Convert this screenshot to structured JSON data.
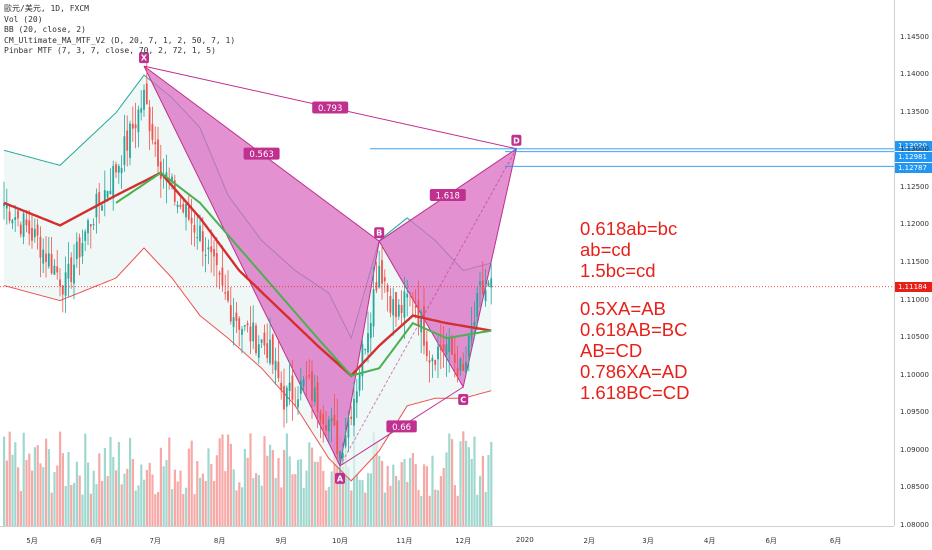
{
  "legend": [
    "歐元/美元, 1D, FXCM",
    "Vol (20)",
    "BB (20, close, 2)",
    "CM_Ultimate_MA_MTF_V2 (D, 20, 7, 1, 2, 50, 7, 1)",
    "Pinbar MTF (7, 3, 7, close, 70, 2, 72, 1, 5)"
  ],
  "annotations": {
    "block1": [
      "0.618ab=bc",
      "ab=cd",
      "1.5bc=cd"
    ],
    "block2": [
      "0.5XA=AB",
      "0.618AB=BC",
      "AB=CD",
      "0.786XA=AD",
      "1.618BC=CD"
    ]
  },
  "price_labels": [
    "1.13020",
    "1.12981",
    "1.12787",
    "1.11184"
  ],
  "colors": {
    "pattern_fill": "#d96cc2",
    "pattern_line": "#c0308f",
    "up": "#26a69a",
    "down": "#ef5350",
    "annotation": "#e8201a",
    "label_blue": "#2196f3"
  },
  "chart_data": {
    "type": "candlestick",
    "y_axis": {
      "ylim": [
        1.08,
        1.15
      ],
      "ticks": [
        "1.14500",
        "1.14000",
        "1.13500",
        "1.13000",
        "1.12500",
        "1.12000",
        "1.11500",
        "1.11000",
        "1.10500",
        "1.10000",
        "1.09500",
        "1.09000",
        "1.08500",
        "1.08000"
      ]
    },
    "x_axis": {
      "ticks": [
        {
          "label": "5月",
          "i": 10
        },
        {
          "label": "6月",
          "i": 33
        },
        {
          "label": "7月",
          "i": 54
        },
        {
          "label": "8月",
          "i": 77
        },
        {
          "label": "9月",
          "i": 99
        },
        {
          "label": "10月",
          "i": 120
        },
        {
          "label": "11月",
          "i": 143
        },
        {
          "label": "12月",
          "i": 164
        },
        {
          "label": "2020",
          "i": 186
        },
        {
          "label": "2月",
          "i": 209
        },
        {
          "label": "3月",
          "i": 230
        },
        {
          "label": "4月",
          "i": 252
        },
        {
          "label": "6月",
          "i": 274
        },
        {
          "label": "6月",
          "i": 297
        }
      ]
    },
    "points": [
      {
        "name": "X",
        "i": 50,
        "price": 1.1412
      },
      {
        "name": "A",
        "i": 120,
        "price": 1.088
      },
      {
        "name": "B",
        "i": 134,
        "price": 1.1179
      },
      {
        "name": "C",
        "i": 164,
        "price": 1.0985
      },
      {
        "name": "D",
        "i": 183,
        "price": 1.1302
      }
    ],
    "ratios": [
      {
        "label": "0.793",
        "from": "X",
        "to": "D"
      },
      {
        "label": "0.563",
        "from": "X",
        "to": "B"
      },
      {
        "label": "1.618",
        "from": "B",
        "to": "D"
      },
      {
        "label": "0.66",
        "from": "A",
        "to": "C"
      }
    ],
    "price_levels": [
      1.1302,
      1.12981,
      1.12787
    ],
    "last_price": 1.11184,
    "key_closes": [
      {
        "i": 0,
        "close": 1.123
      },
      {
        "i": 12,
        "close": 1.118
      },
      {
        "i": 22,
        "close": 1.112
      },
      {
        "i": 30,
        "close": 1.12
      },
      {
        "i": 38,
        "close": 1.126
      },
      {
        "i": 44,
        "close": 1.131
      },
      {
        "i": 50,
        "close": 1.137
      },
      {
        "i": 56,
        "close": 1.128
      },
      {
        "i": 62,
        "close": 1.123
      },
      {
        "i": 70,
        "close": 1.119
      },
      {
        "i": 78,
        "close": 1.111
      },
      {
        "i": 86,
        "close": 1.106
      },
      {
        "i": 94,
        "close": 1.104
      },
      {
        "i": 100,
        "close": 1.097
      },
      {
        "i": 108,
        "close": 1.099
      },
      {
        "i": 116,
        "close": 1.094
      },
      {
        "i": 120,
        "close": 1.09
      },
      {
        "i": 126,
        "close": 1.099
      },
      {
        "i": 134,
        "close": 1.115
      },
      {
        "i": 140,
        "close": 1.108
      },
      {
        "i": 146,
        "close": 1.111
      },
      {
        "i": 152,
        "close": 1.103
      },
      {
        "i": 158,
        "close": 1.104
      },
      {
        "i": 164,
        "close": 1.1
      },
      {
        "i": 170,
        "close": 1.111
      },
      {
        "i": 174,
        "close": 1.1118
      }
    ],
    "bb_upper": [
      {
        "i": 0,
        "v": 1.13
      },
      {
        "i": 20,
        "v": 1.128
      },
      {
        "i": 40,
        "v": 1.135
      },
      {
        "i": 50,
        "v": 1.14
      },
      {
        "i": 60,
        "v": 1.137
      },
      {
        "i": 70,
        "v": 1.133
      },
      {
        "i": 80,
        "v": 1.124
      },
      {
        "i": 92,
        "v": 1.118
      },
      {
        "i": 104,
        "v": 1.114
      },
      {
        "i": 116,
        "v": 1.111
      },
      {
        "i": 124,
        "v": 1.105
      },
      {
        "i": 134,
        "v": 1.118
      },
      {
        "i": 144,
        "v": 1.121
      },
      {
        "i": 154,
        "v": 1.118
      },
      {
        "i": 164,
        "v": 1.114
      },
      {
        "i": 174,
        "v": 1.115
      }
    ],
    "bb_lower": [
      {
        "i": 0,
        "v": 1.112
      },
      {
        "i": 20,
        "v": 1.11
      },
      {
        "i": 40,
        "v": 1.113
      },
      {
        "i": 50,
        "v": 1.117
      },
      {
        "i": 60,
        "v": 1.113
      },
      {
        "i": 70,
        "v": 1.108
      },
      {
        "i": 80,
        "v": 1.105
      },
      {
        "i": 92,
        "v": 1.101
      },
      {
        "i": 104,
        "v": 1.096
      },
      {
        "i": 116,
        "v": 1.089
      },
      {
        "i": 124,
        "v": 1.086
      },
      {
        "i": 134,
        "v": 1.09
      },
      {
        "i": 144,
        "v": 1.096
      },
      {
        "i": 154,
        "v": 1.097
      },
      {
        "i": 164,
        "v": 1.097
      },
      {
        "i": 174,
        "v": 1.098
      }
    ],
    "ma_red": [
      {
        "i": 0,
        "v": 1.123
      },
      {
        "i": 20,
        "v": 1.12
      },
      {
        "i": 40,
        "v": 1.124
      },
      {
        "i": 56,
        "v": 1.127
      },
      {
        "i": 70,
        "v": 1.121
      },
      {
        "i": 84,
        "v": 1.114
      },
      {
        "i": 98,
        "v": 1.109
      },
      {
        "i": 112,
        "v": 1.104
      },
      {
        "i": 124,
        "v": 1.1
      },
      {
        "i": 134,
        "v": 1.104
      },
      {
        "i": 146,
        "v": 1.108
      },
      {
        "i": 158,
        "v": 1.107
      },
      {
        "i": 174,
        "v": 1.106
      }
    ],
    "ma_green": [
      {
        "i": 40,
        "v": 1.123
      },
      {
        "i": 56,
        "v": 1.127
      },
      {
        "i": 70,
        "v": 1.123
      },
      {
        "i": 84,
        "v": 1.117
      },
      {
        "i": 98,
        "v": 1.111
      },
      {
        "i": 112,
        "v": 1.105
      },
      {
        "i": 124,
        "v": 1.1
      },
      {
        "i": 134,
        "v": 1.101
      },
      {
        "i": 146,
        "v": 1.107
      },
      {
        "i": 158,
        "v": 1.105
      },
      {
        "i": 174,
        "v": 1.106
      }
    ]
  }
}
